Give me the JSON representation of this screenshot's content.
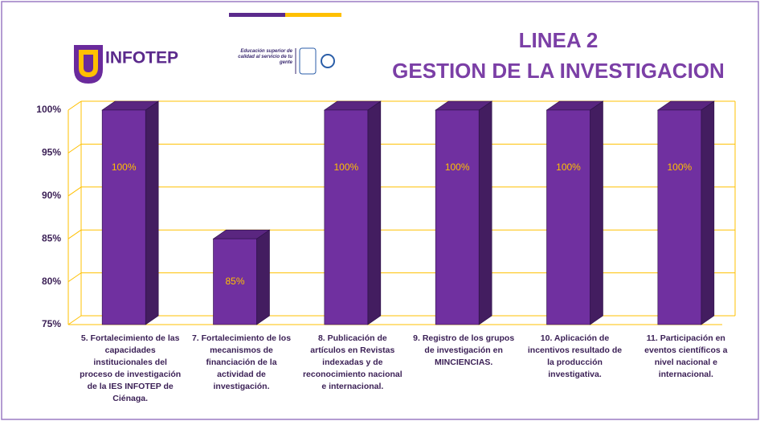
{
  "logo_text": "INFOTEP",
  "tagline": "Educación superior de calidad al servicio de tu gente",
  "chart_data": {
    "type": "bar3d",
    "title": "LINEA 2",
    "subtitle": "GESTION DE LA INVESTIGACION",
    "categories": [
      "5. Fortalecimiento de las capacidades institucionales del proceso de investigación de la IES INFOTEP de Ciénaga.",
      "7. Fortalecimiento de los mecanismos de financiación de la actividad de investigación.",
      "8. Publicación de artículos en Revistas indexadas y de reconocimiento nacional e internacional.",
      "9. Registro de los grupos de investigación en MINCIENCIAS.",
      "10. Aplicación de incentivos resultado de la producción investigativa.",
      "11. Participación en eventos científicos a nivel nacional e internacional."
    ],
    "values": [
      100,
      85,
      100,
      100,
      100,
      100
    ],
    "value_labels": [
      "100%",
      "85%",
      "100%",
      "100%",
      "100%",
      "100%"
    ],
    "color": "#7030a0",
    "ylim": [
      75,
      100
    ],
    "yticks": [
      {
        "value": 75,
        "label": "75%"
      },
      {
        "value": 80,
        "label": "80%"
      },
      {
        "value": 85,
        "label": "85%"
      },
      {
        "value": 90,
        "label": "90%"
      },
      {
        "value": 95,
        "label": "95%"
      },
      {
        "value": 100,
        "label": "100%"
      }
    ],
    "grid": true
  }
}
